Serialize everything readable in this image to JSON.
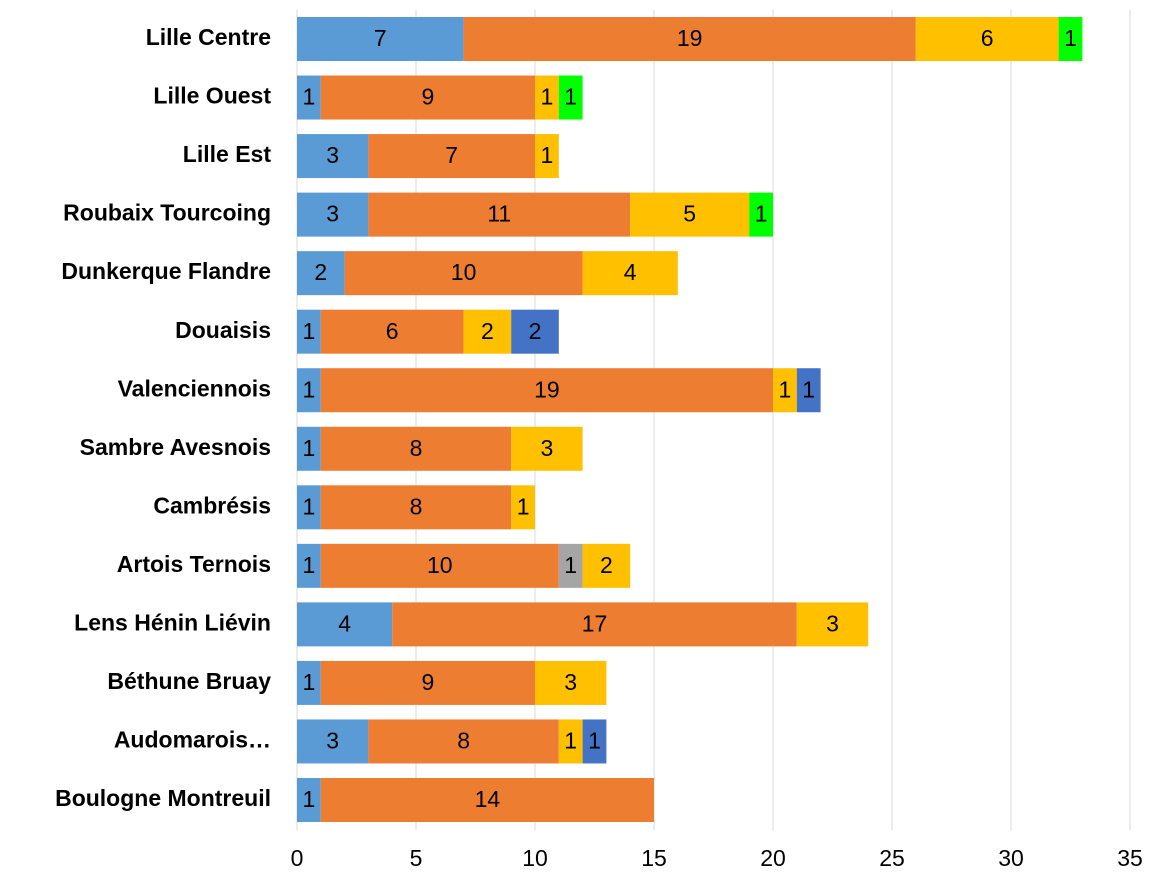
{
  "chart_data": {
    "type": "bar",
    "orientation": "horizontal",
    "stacked": true,
    "categories": [
      "Lille Centre",
      "Lille Ouest",
      "Lille Est",
      "Roubaix Tourcoing",
      "Dunkerque Flandre",
      "Douaisis",
      "Valenciennois",
      "Sambre Avesnois",
      "Cambrésis",
      "Artois Ternois",
      "Lens Hénin Liévin",
      "Béthune Bruay",
      "Audomarois…",
      "Boulogne Montreuil"
    ],
    "series": [
      {
        "color": "#5b9bd5",
        "values": [
          7,
          1,
          3,
          3,
          2,
          1,
          1,
          1,
          1,
          1,
          4,
          1,
          3,
          1
        ]
      },
      {
        "color": "#ed7d31",
        "values": [
          19,
          9,
          7,
          11,
          10,
          6,
          19,
          8,
          8,
          10,
          17,
          9,
          8,
          14
        ]
      },
      {
        "color": "#a5a5a5",
        "values": [
          null,
          null,
          null,
          null,
          null,
          null,
          null,
          null,
          null,
          1,
          null,
          null,
          null,
          null
        ]
      },
      {
        "color": "#ffc000",
        "values": [
          6,
          1,
          1,
          5,
          4,
          2,
          1,
          3,
          1,
          2,
          3,
          3,
          1,
          null
        ]
      },
      {
        "color": "#4472c4",
        "values": [
          null,
          null,
          null,
          null,
          null,
          2,
          1,
          null,
          null,
          null,
          null,
          null,
          1,
          null
        ]
      },
      {
        "color": "#00ff00",
        "values": [
          1,
          1,
          null,
          1,
          null,
          null,
          null,
          null,
          null,
          null,
          null,
          null,
          null,
          null
        ]
      }
    ],
    "xlim": [
      0,
      35
    ],
    "xticks": [
      0,
      5,
      10,
      15,
      20,
      25,
      30,
      35
    ],
    "grid": true
  }
}
